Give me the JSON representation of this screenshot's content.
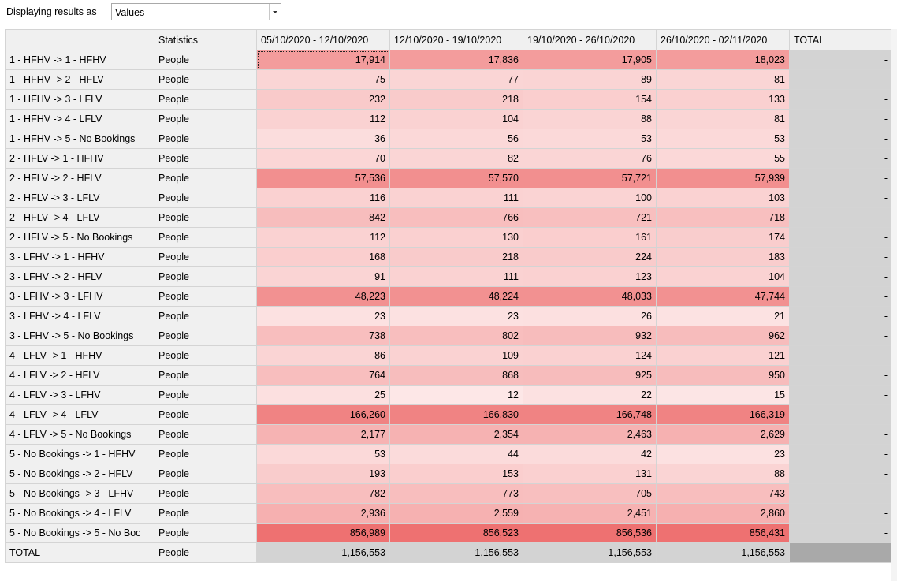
{
  "toolbar": {
    "display_label": "Displaying results as",
    "display_value": "Values"
  },
  "table": {
    "headers": [
      "",
      "Statistics",
      "05/10/2020 - 12/10/2020",
      "12/10/2020 - 19/10/2020",
      "19/10/2020 - 26/10/2020",
      "26/10/2020 - 02/11/2020",
      "TOTAL"
    ],
    "rows": [
      {
        "label": "1 - HFHV -> 1 - HFHV",
        "stat": "People",
        "values": [
          "17,914",
          "17,836",
          "17,905",
          "18,023"
        ],
        "raw": [
          17914,
          17836,
          17905,
          18023
        ],
        "total": "-"
      },
      {
        "label": "1 - HFHV -> 2 - HFLV",
        "stat": "People",
        "values": [
          "75",
          "77",
          "89",
          "81"
        ],
        "raw": [
          75,
          77,
          89,
          81
        ],
        "total": "-"
      },
      {
        "label": "1 - HFHV -> 3 - LFLV",
        "stat": "People",
        "values": [
          "232",
          "218",
          "154",
          "133"
        ],
        "raw": [
          232,
          218,
          154,
          133
        ],
        "total": "-"
      },
      {
        "label": "1 - HFHV -> 4 - LFLV",
        "stat": "People",
        "values": [
          "112",
          "104",
          "88",
          "81"
        ],
        "raw": [
          112,
          104,
          88,
          81
        ],
        "total": "-"
      },
      {
        "label": "1 - HFHV -> 5 - No Bookings",
        "stat": "People",
        "values": [
          "36",
          "56",
          "53",
          "53"
        ],
        "raw": [
          36,
          56,
          53,
          53
        ],
        "total": "-"
      },
      {
        "label": "2 - HFLV -> 1 - HFHV",
        "stat": "People",
        "values": [
          "70",
          "82",
          "76",
          "55"
        ],
        "raw": [
          70,
          82,
          76,
          55
        ],
        "total": "-"
      },
      {
        "label": "2 - HFLV -> 2 - HFLV",
        "stat": "People",
        "values": [
          "57,536",
          "57,570",
          "57,721",
          "57,939"
        ],
        "raw": [
          57536,
          57570,
          57721,
          57939
        ],
        "total": "-"
      },
      {
        "label": "2 - HFLV -> 3 - LFLV",
        "stat": "People",
        "values": [
          "116",
          "111",
          "100",
          "103"
        ],
        "raw": [
          116,
          111,
          100,
          103
        ],
        "total": "-"
      },
      {
        "label": "2 - HFLV -> 4 - LFLV",
        "stat": "People",
        "values": [
          "842",
          "766",
          "721",
          "718"
        ],
        "raw": [
          842,
          766,
          721,
          718
        ],
        "total": "-"
      },
      {
        "label": "2 - HFLV -> 5 - No Bookings",
        "stat": "People",
        "values": [
          "112",
          "130",
          "161",
          "174"
        ],
        "raw": [
          112,
          130,
          161,
          174
        ],
        "total": "-"
      },
      {
        "label": "3 - LFHV -> 1 - HFHV",
        "stat": "People",
        "values": [
          "168",
          "218",
          "224",
          "183"
        ],
        "raw": [
          168,
          218,
          224,
          183
        ],
        "total": "-"
      },
      {
        "label": "3 - LFHV -> 2 - HFLV",
        "stat": "People",
        "values": [
          "91",
          "111",
          "123",
          "104"
        ],
        "raw": [
          91,
          111,
          123,
          104
        ],
        "total": "-"
      },
      {
        "label": "3 - LFHV -> 3 - LFHV",
        "stat": "People",
        "values": [
          "48,223",
          "48,224",
          "48,033",
          "47,744"
        ],
        "raw": [
          48223,
          48224,
          48033,
          47744
        ],
        "total": "-"
      },
      {
        "label": "3 - LFHV -> 4 - LFLV",
        "stat": "People",
        "values": [
          "23",
          "23",
          "26",
          "21"
        ],
        "raw": [
          23,
          23,
          26,
          21
        ],
        "total": "-"
      },
      {
        "label": "3 - LFHV -> 5 - No Bookings",
        "stat": "People",
        "values": [
          "738",
          "802",
          "932",
          "962"
        ],
        "raw": [
          738,
          802,
          932,
          962
        ],
        "total": "-"
      },
      {
        "label": "4 - LFLV -> 1 - HFHV",
        "stat": "People",
        "values": [
          "86",
          "109",
          "124",
          "121"
        ],
        "raw": [
          86,
          109,
          124,
          121
        ],
        "total": "-"
      },
      {
        "label": "4 - LFLV -> 2 - HFLV",
        "stat": "People",
        "values": [
          "764",
          "868",
          "925",
          "950"
        ],
        "raw": [
          764,
          868,
          925,
          950
        ],
        "total": "-"
      },
      {
        "label": "4 - LFLV -> 3 - LFHV",
        "stat": "People",
        "values": [
          "25",
          "12",
          "22",
          "15"
        ],
        "raw": [
          25,
          12,
          22,
          15
        ],
        "total": "-"
      },
      {
        "label": "4 - LFLV -> 4 - LFLV",
        "stat": "People",
        "values": [
          "166,260",
          "166,830",
          "166,748",
          "166,319"
        ],
        "raw": [
          166260,
          166830,
          166748,
          166319
        ],
        "total": "-"
      },
      {
        "label": "4 - LFLV -> 5 - No Bookings",
        "stat": "People",
        "values": [
          "2,177",
          "2,354",
          "2,463",
          "2,629"
        ],
        "raw": [
          2177,
          2354,
          2463,
          2629
        ],
        "total": "-"
      },
      {
        "label": "5 - No Bookings -> 1 - HFHV",
        "stat": "People",
        "values": [
          "53",
          "44",
          "42",
          "23"
        ],
        "raw": [
          53,
          44,
          42,
          23
        ],
        "total": "-"
      },
      {
        "label": "5 - No Bookings -> 2 - HFLV",
        "stat": "People",
        "values": [
          "193",
          "153",
          "131",
          "88"
        ],
        "raw": [
          193,
          153,
          131,
          88
        ],
        "total": "-"
      },
      {
        "label": "5 - No Bookings -> 3 - LFHV",
        "stat": "People",
        "values": [
          "782",
          "773",
          "705",
          "743"
        ],
        "raw": [
          782,
          773,
          705,
          743
        ],
        "total": "-"
      },
      {
        "label": "5 - No Bookings -> 4 - LFLV",
        "stat": "People",
        "values": [
          "2,936",
          "2,559",
          "2,451",
          "2,860"
        ],
        "raw": [
          2936,
          2559,
          2451,
          2860
        ],
        "total": "-"
      },
      {
        "label": "5 - No Bookings -> 5 - No Boc",
        "stat": "People",
        "values": [
          "856,989",
          "856,523",
          "856,536",
          "856,431"
        ],
        "raw": [
          856989,
          856523,
          856536,
          856431
        ],
        "total": "-"
      }
    ],
    "total_row": {
      "label": "TOTAL",
      "stat": "People",
      "values": [
        "1,156,553",
        "1,156,553",
        "1,156,553",
        "1,156,553"
      ],
      "total": "-"
    }
  }
}
